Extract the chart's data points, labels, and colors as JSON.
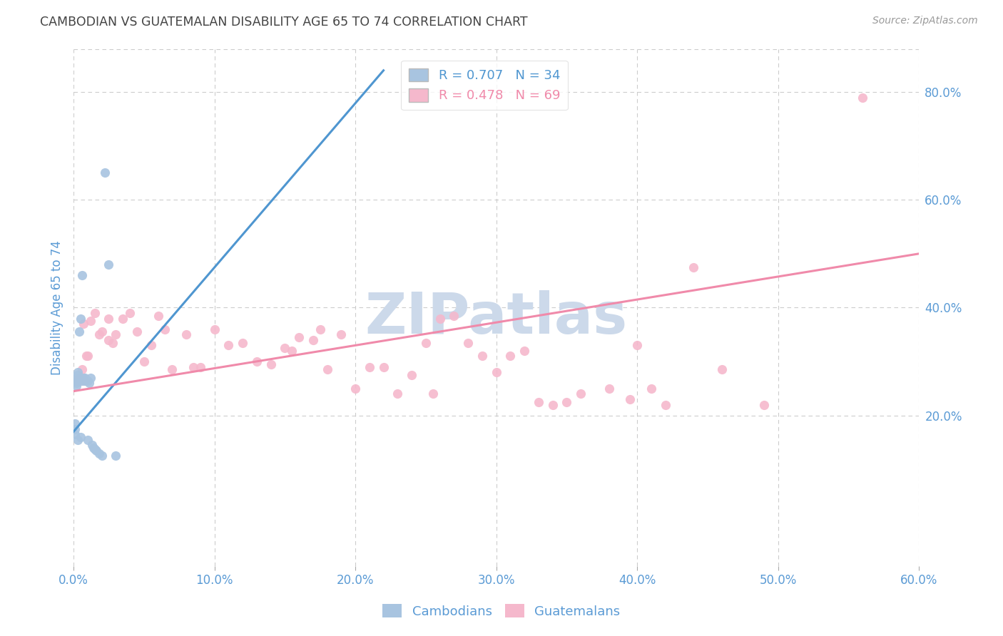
{
  "title": "CAMBODIAN VS GUATEMALAN DISABILITY AGE 65 TO 74 CORRELATION CHART",
  "source": "Source: ZipAtlas.com",
  "ylabel": "Disability Age 65 to 74",
  "xlim": [
    0.0,
    0.6
  ],
  "ylim": [
    -0.08,
    0.88
  ],
  "xticks": [
    0.0,
    0.1,
    0.2,
    0.3,
    0.4,
    0.5,
    0.6
  ],
  "yticks_right": [
    0.2,
    0.4,
    0.6,
    0.8
  ],
  "title_color": "#444444",
  "axis_label_color": "#5b9bd5",
  "tick_color": "#5b9bd5",
  "background_color": "#ffffff",
  "grid_color": "#cccccc",
  "cambodian_color": "#a8c4e0",
  "guatemalan_color": "#f5b8cc",
  "legend_blue_r": "R = 0.707",
  "legend_blue_n": "N = 34",
  "legend_pink_r": "R = 0.478",
  "legend_pink_n": "N = 69",
  "blue_line_color": "#4f96d0",
  "pink_line_color": "#f08aaa",
  "blue_line_x": [
    0.0,
    0.22
  ],
  "blue_line_y": [
    0.17,
    0.84
  ],
  "pink_line_x": [
    0.0,
    0.6
  ],
  "pink_line_y": [
    0.245,
    0.5
  ],
  "watermark": "ZIPatlas",
  "watermark_color": "#ccd9ea",
  "cambodian_x": [
    0.001,
    0.001,
    0.001,
    0.002,
    0.002,
    0.002,
    0.002,
    0.003,
    0.003,
    0.003,
    0.004,
    0.004,
    0.005,
    0.005,
    0.005,
    0.006,
    0.006,
    0.007,
    0.008,
    0.008,
    0.009,
    0.01,
    0.01,
    0.011,
    0.012,
    0.013,
    0.014,
    0.015,
    0.016,
    0.018,
    0.02,
    0.022,
    0.025,
    0.03
  ],
  "cambodian_y": [
    0.185,
    0.175,
    0.165,
    0.27,
    0.265,
    0.26,
    0.255,
    0.28,
    0.275,
    0.155,
    0.355,
    0.27,
    0.38,
    0.27,
    0.16,
    0.46,
    0.265,
    0.27,
    0.27,
    0.265,
    0.265,
    0.265,
    0.155,
    0.26,
    0.27,
    0.145,
    0.14,
    0.138,
    0.135,
    0.13,
    0.125,
    0.65,
    0.48,
    0.125
  ],
  "guatemalan_x": [
    0.001,
    0.002,
    0.003,
    0.004,
    0.005,
    0.006,
    0.006,
    0.007,
    0.008,
    0.009,
    0.01,
    0.012,
    0.015,
    0.018,
    0.02,
    0.025,
    0.025,
    0.028,
    0.03,
    0.035,
    0.04,
    0.045,
    0.05,
    0.055,
    0.06,
    0.065,
    0.07,
    0.08,
    0.085,
    0.09,
    0.1,
    0.11,
    0.12,
    0.13,
    0.14,
    0.15,
    0.155,
    0.16,
    0.17,
    0.175,
    0.18,
    0.19,
    0.2,
    0.21,
    0.22,
    0.23,
    0.24,
    0.25,
    0.255,
    0.26,
    0.27,
    0.28,
    0.29,
    0.3,
    0.31,
    0.32,
    0.33,
    0.34,
    0.35,
    0.36,
    0.38,
    0.395,
    0.4,
    0.41,
    0.42,
    0.44,
    0.46,
    0.49,
    0.56
  ],
  "guatemalan_y": [
    0.265,
    0.265,
    0.265,
    0.27,
    0.265,
    0.27,
    0.285,
    0.37,
    0.265,
    0.31,
    0.31,
    0.375,
    0.39,
    0.35,
    0.355,
    0.38,
    0.34,
    0.335,
    0.35,
    0.38,
    0.39,
    0.355,
    0.3,
    0.33,
    0.385,
    0.36,
    0.285,
    0.35,
    0.29,
    0.29,
    0.36,
    0.33,
    0.335,
    0.3,
    0.295,
    0.325,
    0.32,
    0.345,
    0.34,
    0.36,
    0.285,
    0.35,
    0.25,
    0.29,
    0.29,
    0.24,
    0.275,
    0.335,
    0.24,
    0.38,
    0.385,
    0.335,
    0.31,
    0.28,
    0.31,
    0.32,
    0.225,
    0.22,
    0.225,
    0.24,
    0.25,
    0.23,
    0.33,
    0.25,
    0.22,
    0.475,
    0.285,
    0.22,
    0.79
  ]
}
